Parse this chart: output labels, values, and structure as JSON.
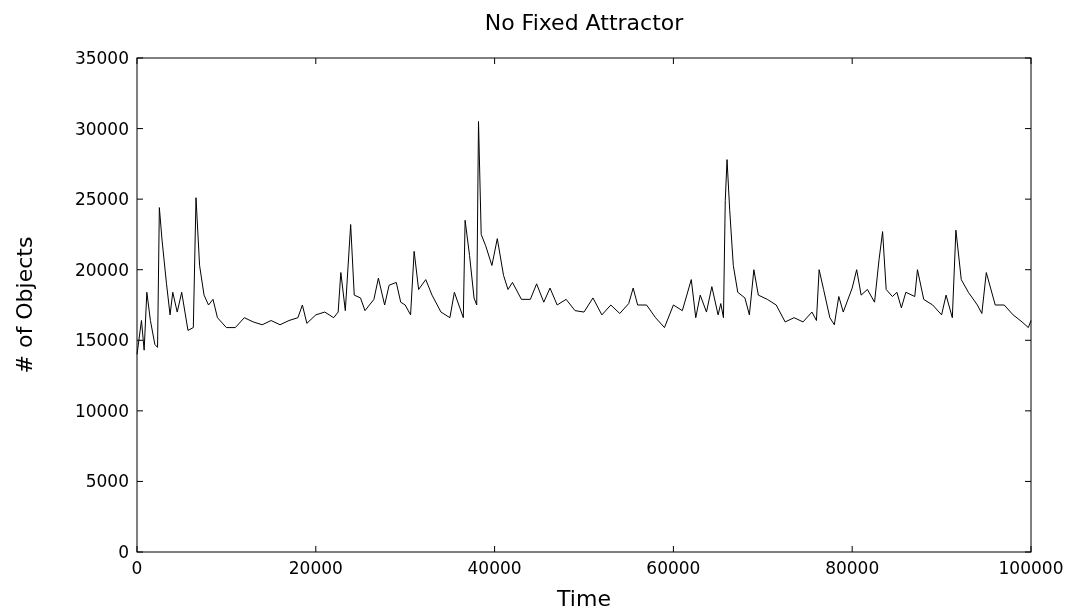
{
  "chart_data": {
    "type": "line",
    "title": "No Fixed Attractor",
    "xlabel": "Time",
    "ylabel": "# of Objects",
    "xlim": [
      0,
      100000
    ],
    "xticks": [
      0,
      20000,
      40000,
      60000,
      80000,
      100000
    ],
    "ylim": [
      0,
      35000
    ],
    "yticks": [
      0,
      5000,
      10000,
      15000,
      20000,
      25000,
      30000,
      35000
    ],
    "grid": false,
    "series": [
      {
        "color": "#000000",
        "x": [
          0,
          500,
          800,
          1100,
          1500,
          2000,
          2300,
          2500,
          2800,
          3300,
          3700,
          4000,
          4500,
          5000,
          5700,
          6300,
          6600,
          7000,
          7500,
          8000,
          8500,
          9000,
          10000,
          11000,
          12000,
          13000,
          14000,
          15000,
          16000,
          17000,
          18000,
          18500,
          19000,
          20000,
          21000,
          22000,
          22500,
          22800,
          23300,
          23900,
          24300,
          25000,
          25500,
          26500,
          27000,
          27700,
          28200,
          29000,
          29500,
          30000,
          30600,
          31000,
          31500,
          32300,
          33000,
          34000,
          35000,
          35500,
          36000,
          36500,
          36700,
          37200,
          37700,
          38000,
          38200,
          38500,
          39000,
          39700,
          40300,
          41000,
          41500,
          42000,
          43000,
          44000,
          44700,
          45500,
          46200,
          47000,
          48000,
          49000,
          50000,
          51000,
          52000,
          53000,
          54000,
          55000,
          55500,
          56000,
          57000,
          58000,
          59000,
          60000,
          61000,
          62000,
          62500,
          63000,
          63700,
          64300,
          65000,
          65300,
          65600,
          65800,
          66000,
          66300,
          66700,
          67200,
          68000,
          68500,
          69000,
          69500,
          70500,
          71500,
          72500,
          73500,
          74500,
          75500,
          76000,
          76300,
          76800,
          77500,
          78000,
          78500,
          79000,
          80000,
          80500,
          81000,
          81700,
          82500,
          83000,
          83400,
          83800,
          84500,
          85000,
          85500,
          86000,
          87000,
          87300,
          88000,
          89000,
          90000,
          90500,
          91200,
          91600,
          92200,
          93000,
          94000,
          94500,
          95000,
          96000,
          97000,
          98000,
          99000,
          99700,
          100000
        ],
        "values": [
          14000,
          16400,
          14300,
          18400,
          16400,
          14700,
          14500,
          24400,
          22100,
          19000,
          16800,
          18400,
          17000,
          18400,
          15700,
          15900,
          25100,
          20300,
          18200,
          17500,
          17900,
          16600,
          15900,
          15900,
          16600,
          16300,
          16100,
          16400,
          16100,
          16400,
          16600,
          17500,
          16200,
          16800,
          17000,
          16600,
          17000,
          19800,
          17100,
          23200,
          18200,
          18000,
          17100,
          17900,
          19400,
          17500,
          18900,
          19100,
          17700,
          17500,
          16800,
          21300,
          18600,
          19300,
          18200,
          17000,
          16600,
          18400,
          17500,
          16600,
          23500,
          21000,
          18000,
          17500,
          30500,
          22500,
          21700,
          20300,
          22200,
          19600,
          18600,
          19100,
          17900,
          17900,
          19000,
          17700,
          18700,
          17500,
          17900,
          17100,
          17000,
          18000,
          16800,
          17500,
          16900,
          17600,
          18700,
          17500,
          17500,
          16600,
          15900,
          17500,
          17100,
          19300,
          16600,
          18200,
          17000,
          18800,
          16800,
          17600,
          16600,
          24900,
          27800,
          24200,
          20300,
          18400,
          18000,
          16800,
          20000,
          18200,
          17900,
          17500,
          16300,
          16600,
          16300,
          17000,
          16400,
          20000,
          18600,
          16600,
          16100,
          18100,
          17000,
          18700,
          20000,
          18200,
          18600,
          17700,
          20700,
          22700,
          18600,
          18100,
          18400,
          17300,
          18400,
          18100,
          20000,
          17900,
          17500,
          16800,
          18200,
          16600,
          22800,
          19300,
          18400,
          17500,
          16900,
          19800,
          17500,
          17500,
          16800,
          16300,
          15900,
          16400
        ]
      }
    ]
  }
}
